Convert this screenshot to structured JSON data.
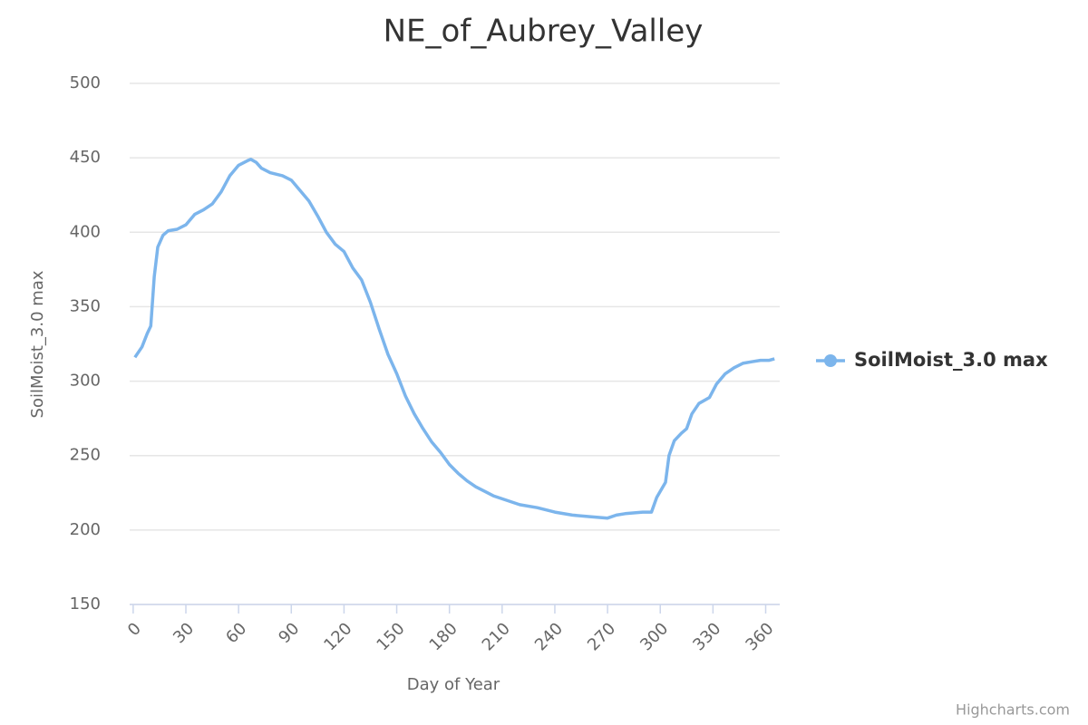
{
  "chart_data": {
    "type": "line",
    "title": "NE_of_Aubrey_Valley",
    "x_label": "Day of Year",
    "y_label": "SoilMoist_3.0 max",
    "credits": "Highcharts.com",
    "x": [
      1,
      5,
      8,
      10,
      12,
      14,
      17,
      20,
      25,
      30,
      35,
      40,
      45,
      50,
      55,
      60,
      65,
      67,
      70,
      73,
      78,
      85,
      90,
      95,
      100,
      105,
      110,
      115,
      120,
      125,
      130,
      135,
      140,
      145,
      150,
      155,
      160,
      165,
      170,
      175,
      180,
      185,
      190,
      195,
      200,
      205,
      210,
      215,
      220,
      230,
      240,
      250,
      260,
      270,
      275,
      280,
      290,
      295,
      298,
      303,
      305,
      308,
      312,
      315,
      318,
      322,
      328,
      332,
      337,
      342,
      347,
      352,
      357,
      362,
      365
    ],
    "series": [
      {
        "name": "SoilMoist_3.0 max",
        "color": "#7cb5ec",
        "values": [
          316,
          323,
          332,
          337,
          370,
          390,
          398,
          401,
          402,
          405,
          412,
          415,
          419,
          427,
          438,
          445,
          448,
          449,
          447,
          443,
          440,
          438,
          435,
          428,
          421,
          411,
          400,
          392,
          387,
          376,
          368,
          353,
          335,
          318,
          305,
          290,
          278,
          268,
          259,
          252,
          244,
          238,
          233,
          229,
          226,
          223,
          221,
          219,
          217,
          215,
          212,
          210,
          209,
          208,
          210,
          211,
          212,
          212,
          222,
          232,
          250,
          260,
          265,
          268,
          278,
          285,
          289,
          298,
          305,
          309,
          312,
          313,
          314,
          314,
          315
        ]
      }
    ],
    "xlim": [
      -2,
      368
    ],
    "xticks": [
      0,
      30,
      60,
      90,
      120,
      150,
      180,
      210,
      240,
      270,
      300,
      330,
      360
    ],
    "ylim": [
      150,
      500
    ],
    "yticks": [
      150,
      200,
      250,
      300,
      350,
      400,
      450,
      500
    ],
    "grid": true,
    "legend": "right"
  }
}
